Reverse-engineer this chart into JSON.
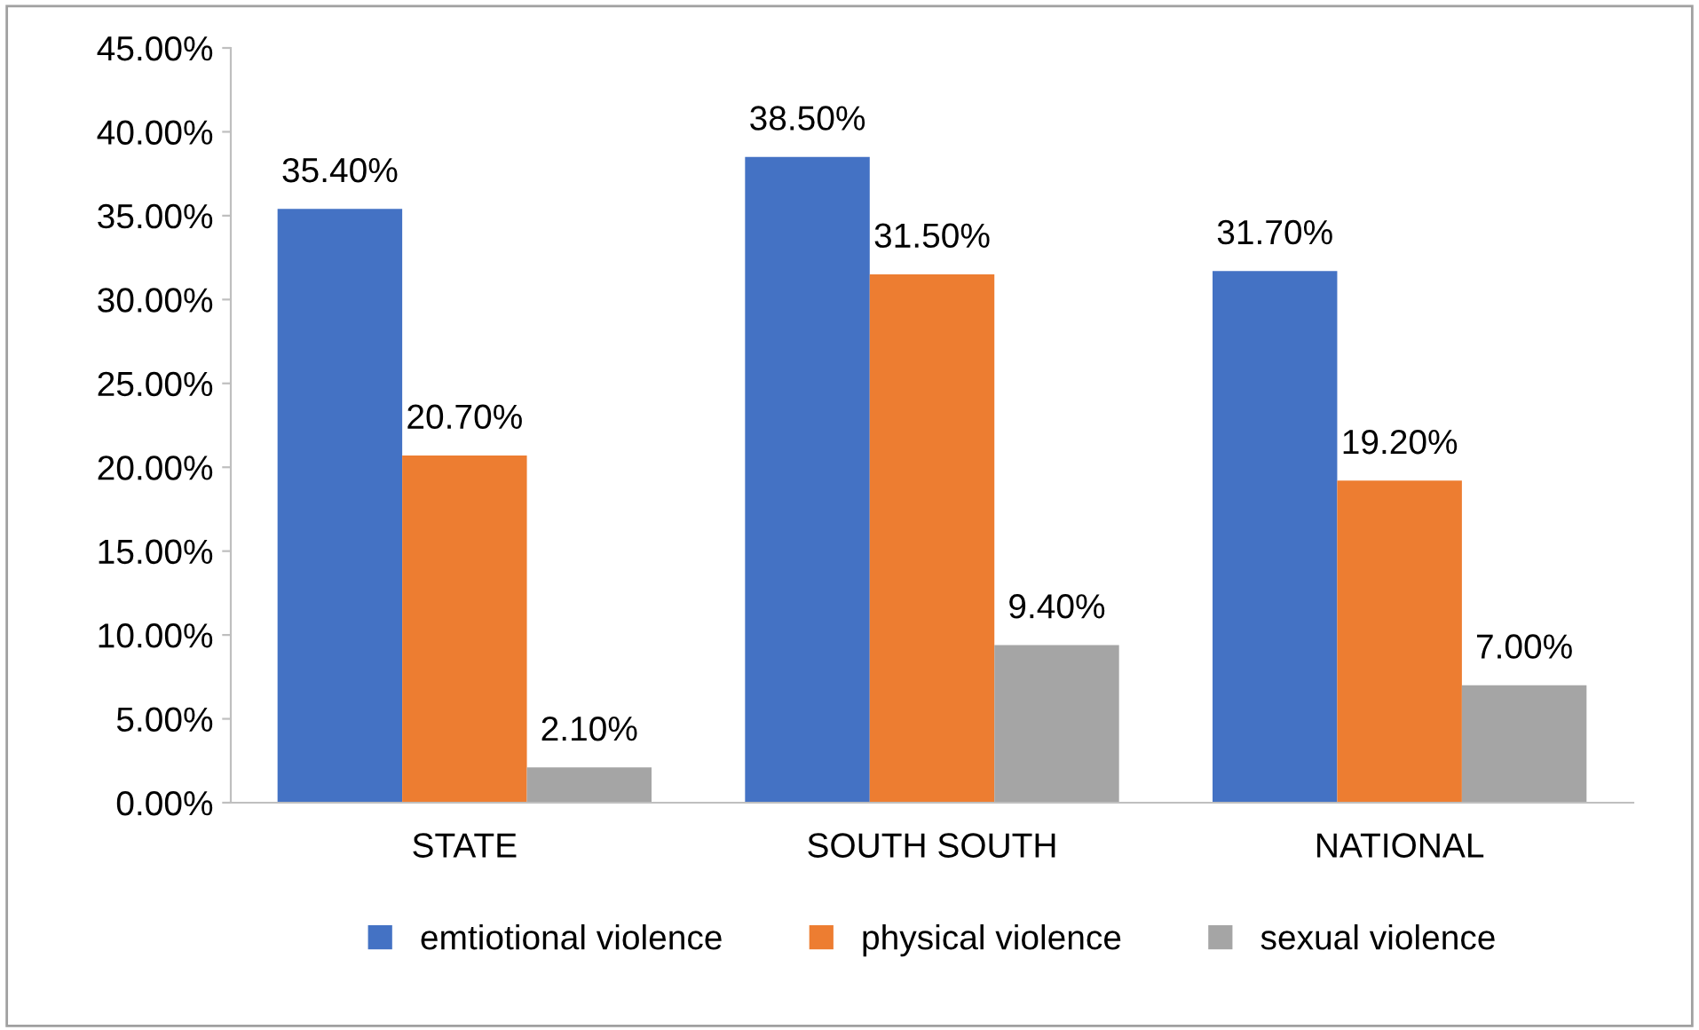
{
  "chart_data": {
    "type": "bar",
    "categories": [
      "STATE",
      "SOUTH SOUTH",
      "NATIONAL"
    ],
    "series": [
      {
        "name": "emtiotional violence",
        "color": "#4472c4",
        "values": [
          35.4,
          38.5,
          31.7
        ],
        "value_labels": [
          "35.40%",
          "38.50%",
          "31.70%"
        ]
      },
      {
        "name": "physical violence",
        "color": "#ed7d31",
        "values": [
          20.7,
          31.5,
          19.2
        ],
        "value_labels": [
          "20.70%",
          "31.50%",
          "19.20%"
        ]
      },
      {
        "name": "sexual violence",
        "color": "#a5a5a5",
        "values": [
          2.1,
          9.4,
          7.0
        ],
        "value_labels": [
          "2.10%",
          "9.40%",
          "7.00%"
        ]
      }
    ],
    "ylim": [
      0,
      45
    ],
    "yticks": [
      {
        "value": 0,
        "label": "0.00%"
      },
      {
        "value": 5,
        "label": "5.00%"
      },
      {
        "value": 10,
        "label": "10.00%"
      },
      {
        "value": 15,
        "label": "15.00%"
      },
      {
        "value": 20,
        "label": "20.00%"
      },
      {
        "value": 25,
        "label": "25.00%"
      },
      {
        "value": 30,
        "label": "30.00%"
      },
      {
        "value": 35,
        "label": "35.00%"
      },
      {
        "value": 40,
        "label": "40.00%"
      },
      {
        "value": 45,
        "label": "45.00%"
      }
    ],
    "grid": false,
    "legend": "bottom"
  }
}
